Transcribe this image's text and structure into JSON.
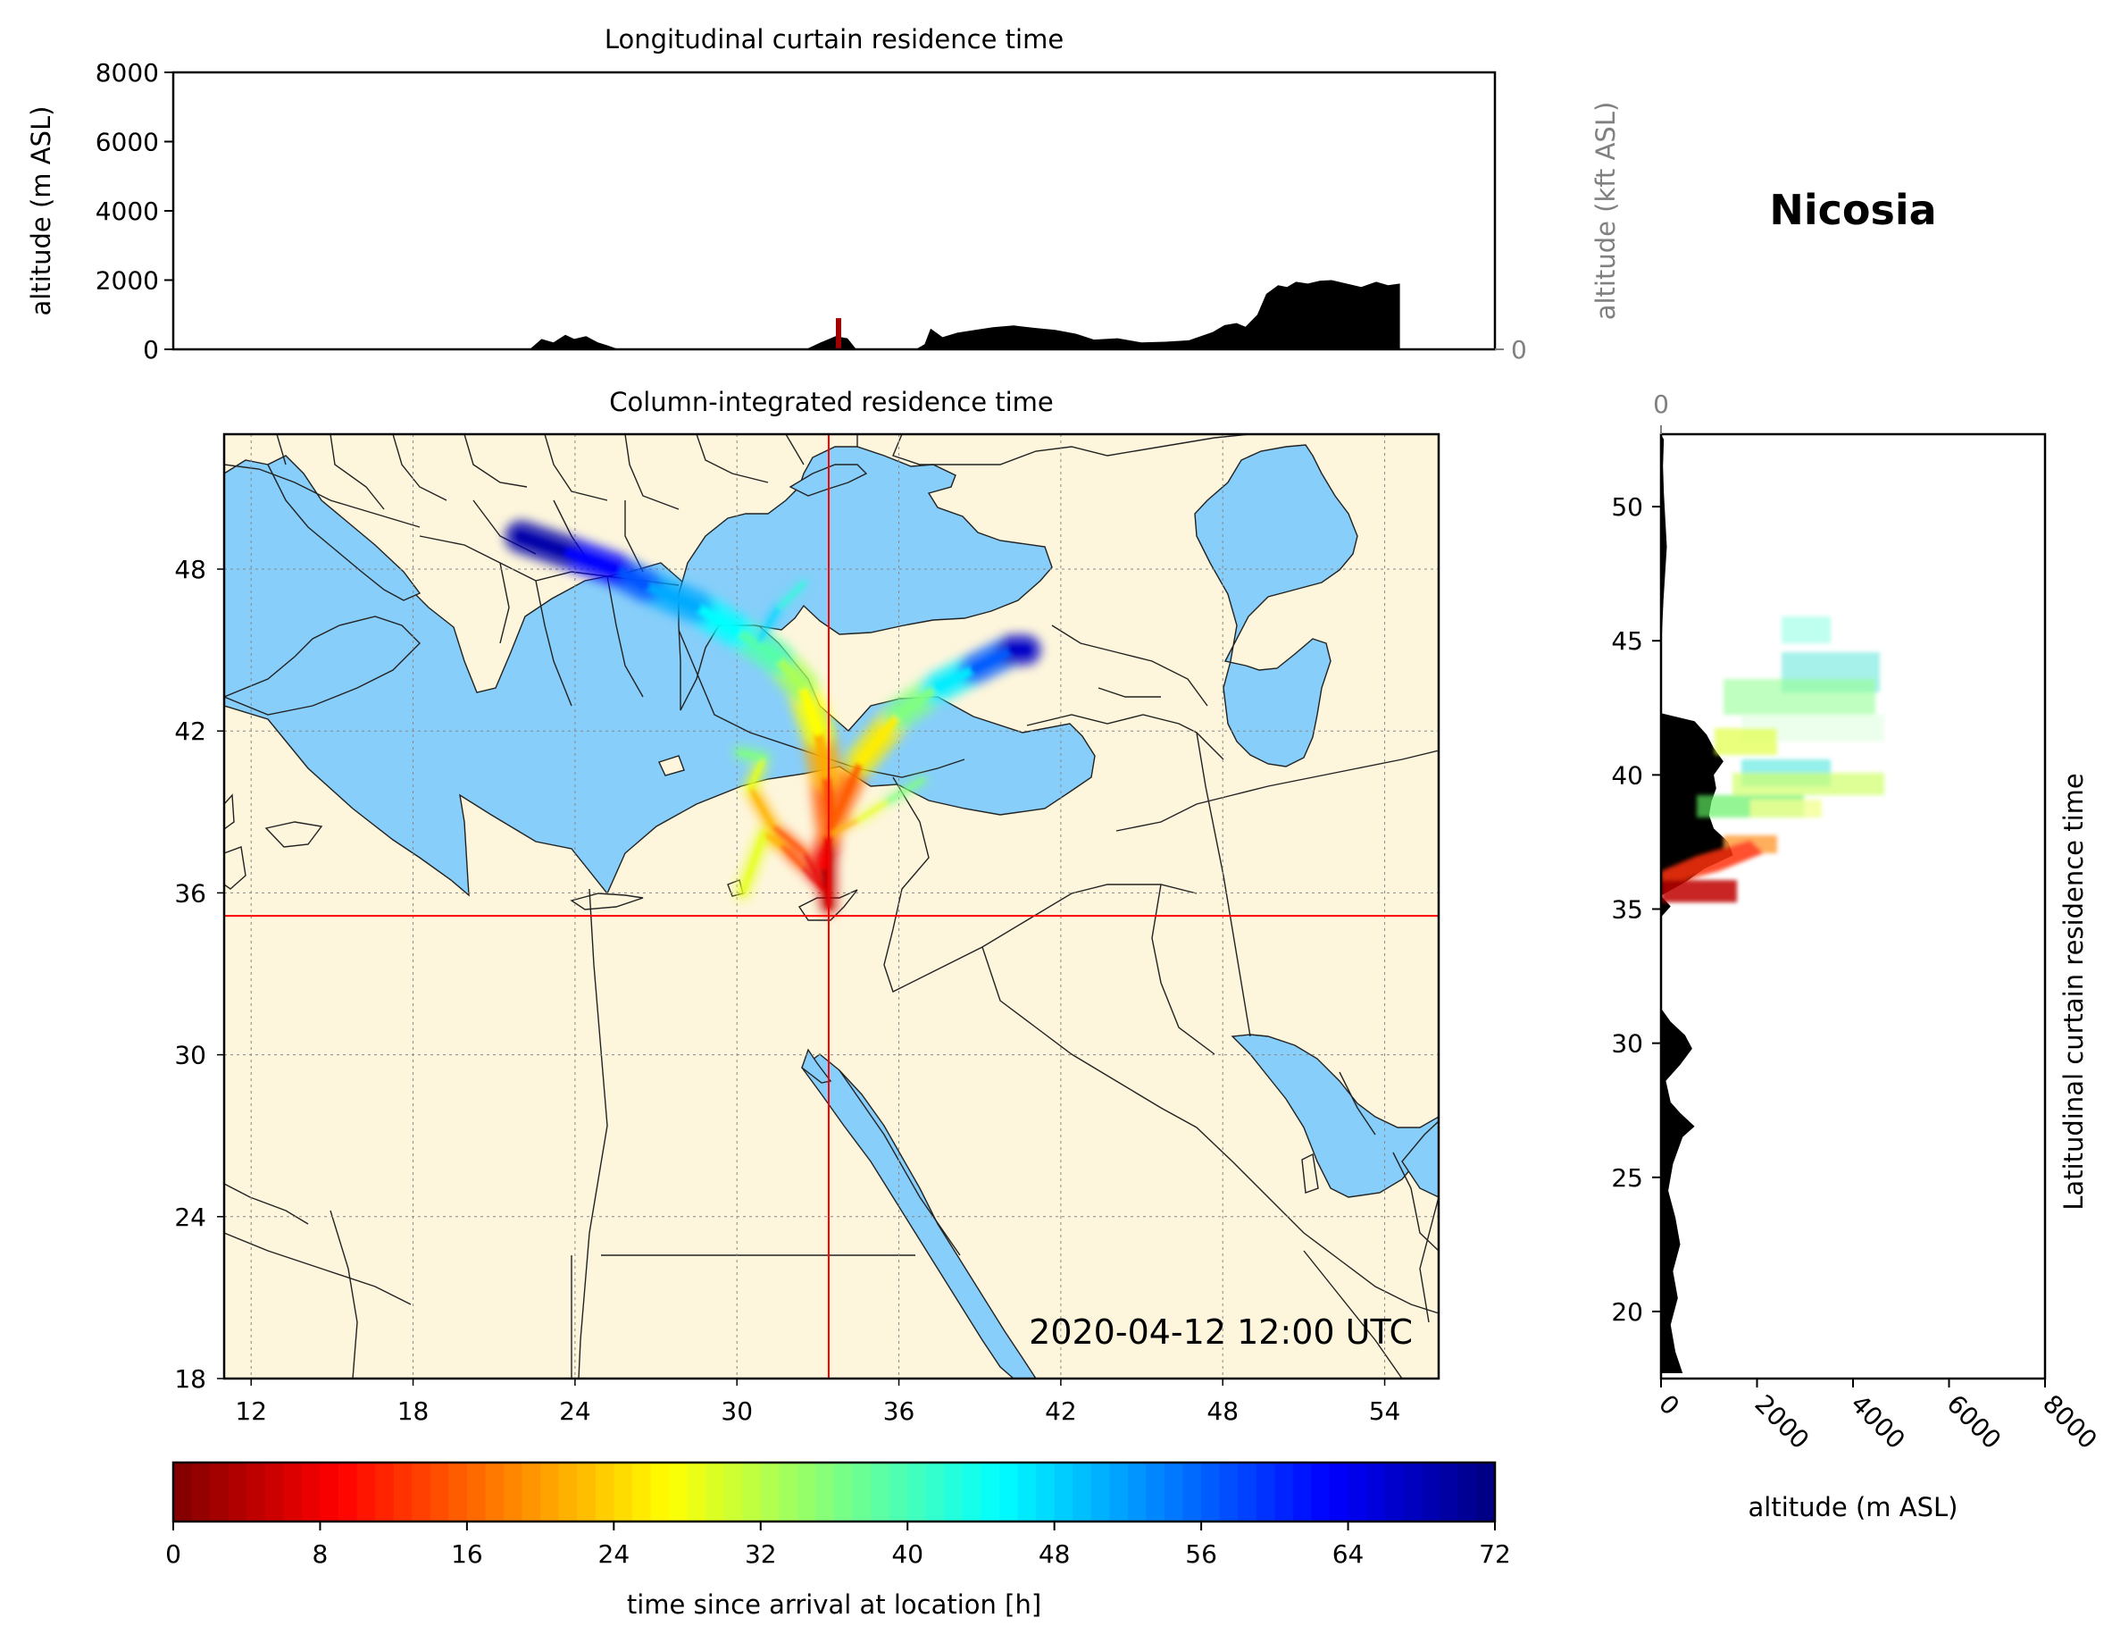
{
  "station": "Nicosia",
  "timestamp": "2020-04-12 12:00 UTC",
  "colors": {
    "land": "#fdf6dc",
    "sea": "#87cefa",
    "terrain": "#000000",
    "crosshair": "#ff0000"
  },
  "chart_data": [
    {
      "name": "longitudinal",
      "type": "area",
      "title": "Longitudinal curtain residence time",
      "ylabel": "altitude (m ASL)",
      "ylabel_right": "altitude (kft ASL)",
      "xlim": [
        11,
        55.5
      ],
      "ylim": [
        0,
        8000
      ],
      "yticks": [
        0,
        2000,
        4000,
        6000,
        8000
      ],
      "yticks_right": [
        0,
        50,
        100
      ],
      "terrain": {
        "x": [
          23.0,
          23.4,
          23.8,
          24.2,
          24.5,
          24.9,
          25.3,
          25.6,
          26.0,
          32.3,
          32.8,
          33.3,
          33.7,
          34.0,
          36.0,
          36.3,
          36.5,
          36.9,
          37.4,
          38.0,
          38.6,
          39.3,
          40.0,
          40.7,
          41.4,
          42.0,
          42.8,
          43.6,
          44.4,
          45.2,
          46.0,
          46.4,
          46.8,
          47.1,
          47.5,
          47.8,
          48.2,
          48.5,
          48.8,
          49.2,
          49.6,
          50.0,
          50.5,
          51.0,
          51.5,
          51.9,
          52.3,
          52.3
        ],
        "y": [
          0,
          300,
          200,
          420,
          300,
          380,
          200,
          120,
          0,
          0,
          200,
          380,
          320,
          0,
          0,
          150,
          600,
          350,
          480,
          560,
          640,
          690,
          620,
          560,
          450,
          280,
          320,
          200,
          220,
          260,
          500,
          700,
          760,
          650,
          1000,
          1600,
          1850,
          1800,
          1950,
          1900,
          1980,
          2000,
          1900,
          1800,
          1950,
          1850,
          1900,
          0
        ]
      },
      "arrival_mark_lon": 33.4
    },
    {
      "name": "column",
      "type": "heatmap",
      "title": "Column-integrated residence time",
      "xlim": [
        11,
        56
      ],
      "ylim": [
        18,
        53
      ],
      "xticks": [
        12,
        18,
        24,
        30,
        36,
        42,
        48,
        54
      ],
      "yticks": [
        18,
        24,
        30,
        36,
        42,
        48
      ],
      "arrival": {
        "lon": 33.4,
        "lat": 35.15
      },
      "plumes": [
        {
          "lon": [
            33.4,
            33.2,
            33.5,
            33.3,
            33.0,
            32.4,
            31.5,
            30.0,
            28.5,
            26.6,
            25.5,
            23.5,
            22.0
          ],
          "lat": [
            35.5,
            37.0,
            38.7,
            40.4,
            42.0,
            43.7,
            44.7,
            45.7,
            46.6,
            47.4,
            48.0,
            48.7,
            49.2
          ]
        },
        {
          "lon": [
            33.4,
            33.4,
            34.6,
            36.0,
            37.4,
            38.8,
            40.2,
            40.7
          ],
          "lat": [
            35.5,
            38.2,
            40.9,
            42.6,
            43.6,
            44.3,
            45.0,
            45.0
          ]
        },
        {
          "lon": [
            33.3,
            32.4,
            31.6,
            31.0,
            30.2
          ],
          "lat": [
            36.0,
            37.0,
            37.8,
            38.2,
            36.0
          ]
        },
        {
          "lon": [
            33.2,
            32.5,
            31.3,
            30.5,
            31.0,
            30.1
          ],
          "lat": [
            36.2,
            37.5,
            38.5,
            39.9,
            41.0,
            41.2
          ]
        },
        {
          "lon": [
            33.5,
            34.5,
            35.6,
            36.9
          ],
          "lat": [
            38.2,
            38.7,
            39.4,
            40.2
          ]
        },
        {
          "lon": [
            32.5,
            31.5,
            30.8
          ],
          "lat": [
            47.5,
            46.5,
            45.3
          ]
        }
      ]
    },
    {
      "name": "latitudinal",
      "type": "area",
      "title": "Latitudinal curtain residence time",
      "xlabel": "altitude (m ASL)",
      "xlim": [
        0,
        8000
      ],
      "ylim": [
        17.5,
        52.7
      ],
      "xticks": [
        0,
        2000,
        4000,
        6000,
        8000
      ],
      "xticks_top": [
        0,
        50,
        100
      ],
      "yticks": [
        20,
        25,
        30,
        35,
        40,
        45,
        50
      ],
      "terrain": {
        "lat": [
          17.7,
          18.5,
          19.5,
          20.5,
          21.5,
          22.5,
          23.5,
          24.5,
          25.5,
          26.5,
          26.9,
          27.4,
          27.8,
          28.6,
          29.2,
          29.8,
          30.3,
          30.8,
          31.3,
          34.7,
          35.1,
          35.4,
          35.5,
          36.0,
          36.5,
          37.0,
          37.5,
          38.0,
          38.5,
          39.0,
          39.5,
          40.0,
          40.5,
          41.0,
          41.5,
          42.0,
          42.3,
          44.5,
          46.5,
          48.5,
          50.5,
          51.5,
          52.5,
          52.7
        ],
        "alt": [
          450,
          300,
          200,
          350,
          250,
          400,
          300,
          150,
          250,
          450,
          700,
          400,
          200,
          100,
          400,
          650,
          500,
          200,
          0,
          0,
          200,
          50,
          0,
          500,
          900,
          1500,
          1400,
          1100,
          1000,
          1050,
          1150,
          1100,
          1300,
          1100,
          950,
          700,
          0,
          0,
          50,
          120,
          60,
          40,
          60,
          0
        ]
      }
    },
    {
      "name": "colorbar",
      "type": "bar",
      "xlabel": "time since arrival at location [h]",
      "range": [
        0,
        72
      ],
      "ticks": [
        0,
        8,
        16,
        24,
        32,
        40,
        48,
        56,
        64,
        72
      ],
      "colormap": "jet_reversed"
    }
  ]
}
